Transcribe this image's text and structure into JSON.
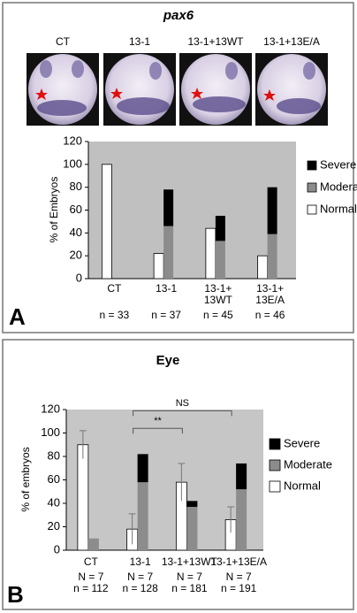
{
  "chart_data": [
    {
      "type": "bar",
      "title": "pax6",
      "panel_label": "A",
      "image_labels": [
        "CT",
        "13-1",
        "13-1+13WT",
        "13-1+13E/A"
      ],
      "ylabel": "% of Embryos",
      "categories": [
        [
          "CT"
        ],
        [
          "13-1"
        ],
        [
          "13-1+",
          "13WT"
        ],
        [
          "13-1+",
          "13E/A"
        ]
      ],
      "sample_sizes": [
        "n = 33",
        "n = 37",
        "n = 45",
        "n = 46"
      ],
      "ylim": [
        0,
        120
      ],
      "yticks": [
        0,
        20,
        40,
        60,
        80,
        100,
        120
      ],
      "series": [
        {
          "name": "Severe",
          "color": "#000000",
          "values": [
            0,
            32,
            22,
            41
          ]
        },
        {
          "name": "Moderate",
          "color": "#8c8c8c",
          "values": [
            0,
            46,
            33,
            39
          ]
        },
        {
          "name": "Normal",
          "color": "#ffffff",
          "values": [
            100,
            22,
            44,
            20
          ]
        }
      ]
    },
    {
      "type": "bar",
      "title": "Eye",
      "panel_label": "B",
      "ylabel": "% of embryos",
      "categories": [
        [
          "CT"
        ],
        [
          "13-1"
        ],
        [
          "13-1+13WT"
        ],
        [
          "13-1+13E/A"
        ]
      ],
      "N_labels": [
        "N = 7",
        "N = 7",
        "N = 7",
        "N = 7"
      ],
      "sample_sizes": [
        "n = 112",
        "n = 128",
        "n = 181",
        "n = 191"
      ],
      "ylim": [
        0,
        120
      ],
      "yticks": [
        0,
        20,
        40,
        60,
        80,
        100,
        120
      ],
      "annotations": [
        "**",
        "NS"
      ],
      "series": [
        {
          "name": "Severe",
          "color": "#000000",
          "values": [
            0,
            24,
            5,
            22
          ]
        },
        {
          "name": "Moderate",
          "color": "#8c8c8c",
          "values": [
            10,
            58,
            37,
            52
          ]
        },
        {
          "name": "Normal",
          "color": "#ffffff",
          "values": [
            90,
            18,
            58,
            26
          ],
          "errors": [
            12,
            13,
            16,
            11
          ]
        }
      ]
    }
  ]
}
